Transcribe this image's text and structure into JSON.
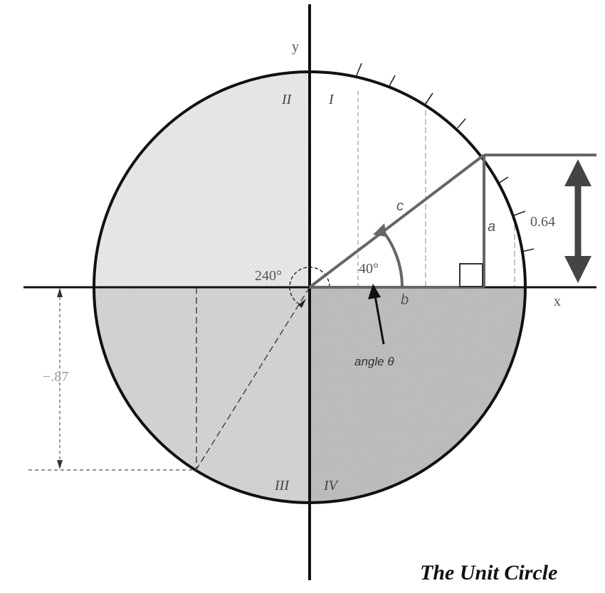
{
  "axes": {
    "x_label": "x",
    "y_label": "y"
  },
  "quadrants": {
    "q1": "I",
    "q2": "II",
    "q3": "III",
    "q4": "IV"
  },
  "angles": {
    "theta_value": "40°",
    "reference_value": "240°",
    "pointer_label": "angle θ"
  },
  "sides": {
    "hypotenuse": "c",
    "opposite": "a",
    "adjacent": "b"
  },
  "values": {
    "sine_40": "0.64",
    "sine_240": "−.87"
  },
  "title": "The Unit Circle",
  "colors": {
    "upper_left_fill": "#e7e7e7",
    "lower_left_fill": "#d3d3d3",
    "lower_right_fill": "#bdbdbd",
    "upper_right_fill": "#ffffff",
    "outline": "#111111",
    "construction": "#666666",
    "arrow": "#555555"
  }
}
